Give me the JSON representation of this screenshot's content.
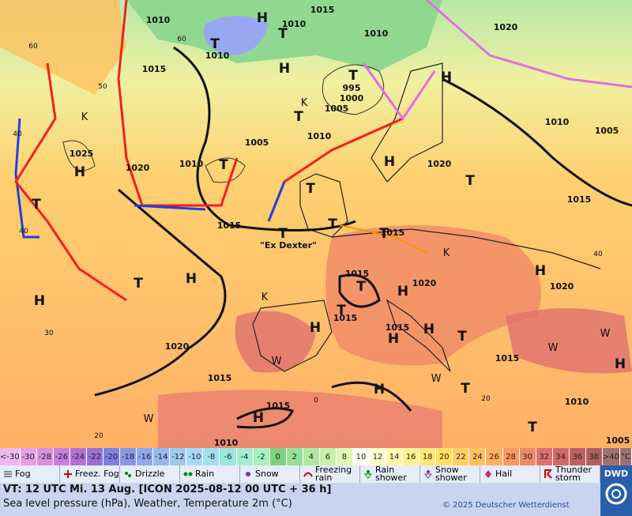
{
  "map": {
    "isobar_labels": [
      "1010",
      "1015",
      "1010",
      "1010",
      "1010",
      "1015",
      "995",
      "1000",
      "1005",
      "1020",
      "1010",
      "1005",
      "1025",
      "1020",
      "1010",
      "1005",
      "1010",
      "1020",
      "1015",
      "1015",
      "1015",
      "1015",
      "1020",
      "1015",
      "1015",
      "1020",
      "1015",
      "1020",
      "1015",
      "1015",
      "1010",
      "1010",
      "1005"
    ],
    "pressure_centers": [
      "H",
      "T",
      "T",
      "H",
      "T",
      "T",
      "K",
      "K",
      "H",
      "T",
      "T",
      "T",
      "T",
      "H",
      "H",
      "T",
      "T",
      "T",
      "T",
      "T",
      "H",
      "H",
      "H",
      "H",
      "T",
      "H",
      "H",
      "T",
      "H",
      "H",
      "T",
      "H",
      "H",
      "T",
      "K",
      "K",
      "W",
      "W",
      "W",
      "W",
      "W"
    ],
    "grid_labels": [
      "60",
      "60",
      "50",
      "40",
      "40",
      "30",
      "20",
      "0",
      "20",
      "40"
    ],
    "annotation": "\"Ex Dexter\""
  },
  "legend": {
    "temperature": {
      "labels": [
        "<-30",
        "-30",
        "-28",
        "-26",
        "-24",
        "-22",
        "-20",
        "-18",
        "-16",
        "-14",
        "-12",
        "-10",
        "-8",
        "-6",
        "-4",
        "-2",
        "0",
        "2",
        "4",
        "6",
        "8",
        "10",
        "12",
        "14",
        "16",
        "18",
        "20",
        "22",
        "24",
        "26",
        "28",
        "30",
        "32",
        "34",
        "36",
        "38",
        ">40"
      ],
      "colors": [
        "#f0b8f0",
        "#e6a0e6",
        "#d890e0",
        "#c880dc",
        "#b070d8",
        "#9870d8",
        "#8080e0",
        "#8898e8",
        "#90a8f0",
        "#98b8f0",
        "#a0c8f0",
        "#a8d8f8",
        "#a0e0f0",
        "#98e8e0",
        "#a0f0d0",
        "#a8f0c0",
        "#80d080",
        "#98e098",
        "#b0e8a0",
        "#c8f0a8",
        "#e0f8b8",
        "#fffff0",
        "#fffcd0",
        "#fff8b0",
        "#fff090",
        "#ffe878",
        "#ffe060",
        "#ffd060",
        "#ffc060",
        "#ffb060",
        "#ff9860",
        "#f08868",
        "#e07070",
        "#d06868",
        "#c06060",
        "#b06060",
        "#a07070"
      ],
      "unit": "°C"
    },
    "weather": [
      "Fog",
      "Freez. Fog",
      "Drizzle",
      "Rain",
      "Snow",
      "Freezing rain",
      "Rain shower",
      "Snow shower",
      "Hail",
      "Thunder storm"
    ]
  },
  "footer": {
    "valid_time": "VT: 12 UTC Mi.  13 Aug. [ICON 2025-08-12  00 UTC + 36 h]",
    "description": "Sea level pressure (hPa), Weather, Temperature 2m (°C)",
    "copyright": "© 2025 Deutscher Wetterdienst",
    "logo": "DWD"
  }
}
